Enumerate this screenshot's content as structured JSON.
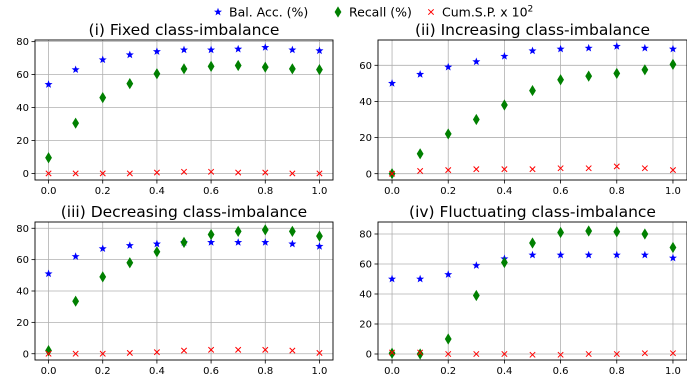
{
  "legend": {
    "entries": [
      {
        "label": "Bal. Acc. (%)",
        "marker": "star",
        "color": "#0000ff"
      },
      {
        "label": "Recall (%)",
        "marker": "diamond",
        "color": "#008000"
      },
      {
        "label": "Cum.S.P. x 10",
        "sup": "2",
        "marker": "x",
        "color": "#ff0000"
      }
    ],
    "placement": "top-center"
  },
  "chart_data": [
    {
      "type": "scatter",
      "title": "(i) Fixed class-imbalance",
      "x": [
        0.0,
        0.1,
        0.2,
        0.3,
        0.4,
        0.5,
        0.6,
        0.7,
        0.8,
        0.9,
        1.0
      ],
      "xticks": [
        "0.0",
        "0.2",
        "0.4",
        "0.6",
        "0.8",
        "1.0"
      ],
      "xlim": [
        -0.05,
        1.05
      ],
      "ylim": [
        -4,
        81
      ],
      "yticks": [
        0,
        20,
        40,
        60,
        80
      ],
      "grid": true,
      "series": [
        {
          "name": "Bal. Acc. (%)",
          "values": [
            54,
            63,
            69,
            72,
            74,
            75,
            75,
            75.5,
            76.5,
            75,
            74.5
          ]
        },
        {
          "name": "Recall (%)",
          "values": [
            9.5,
            30.5,
            46,
            54.5,
            60.5,
            63.5,
            65,
            65.5,
            64.5,
            63.5,
            63
          ]
        },
        {
          "name": "Cum.S.P. x 10^2",
          "values": [
            0,
            0,
            0,
            0,
            0.5,
            1,
            1,
            0.5,
            0.5,
            0,
            0
          ]
        }
      ]
    },
    {
      "type": "scatter",
      "title": "(ii) Increasing class-imbalance",
      "x": [
        0.0,
        0.1,
        0.2,
        0.3,
        0.4,
        0.5,
        0.6,
        0.7,
        0.8,
        0.9,
        1.0
      ],
      "xticks": [
        "0.0",
        "0.2",
        "0.4",
        "0.6",
        "0.8",
        "1.0"
      ],
      "xlim": [
        -0.05,
        1.05
      ],
      "ylim": [
        -3.5,
        74
      ],
      "yticks": [
        0,
        20,
        40,
        60
      ],
      "grid": true,
      "series": [
        {
          "name": "Bal. Acc. (%)",
          "values": [
            50,
            55,
            59,
            62,
            65,
            68,
            69,
            69.5,
            70.5,
            69.5,
            69
          ]
        },
        {
          "name": "Recall (%)",
          "values": [
            0,
            11,
            22,
            30,
            38,
            46,
            52,
            54,
            55.5,
            57.5,
            60.5
          ]
        },
        {
          "name": "Cum.S.P. x 10^2",
          "values": [
            0,
            1.5,
            2,
            2.5,
            2.5,
            2.5,
            3,
            3,
            4,
            3,
            2
          ]
        }
      ]
    },
    {
      "type": "scatter",
      "title": "(iii) Decreasing class-imbalance",
      "x": [
        0.0,
        0.1,
        0.2,
        0.3,
        0.4,
        0.5,
        0.6,
        0.7,
        0.8,
        0.9,
        1.0
      ],
      "xticks": [
        "0.0",
        "0.2",
        "0.4",
        "0.6",
        "0.8",
        "1.0"
      ],
      "xlim": [
        -0.05,
        1.05
      ],
      "ylim": [
        -4,
        84
      ],
      "yticks": [
        0,
        20,
        40,
        60,
        80
      ],
      "grid": true,
      "series": [
        {
          "name": "Bal. Acc. (%)",
          "values": [
            51,
            62,
            67,
            69,
            70,
            71,
            71,
            71,
            71,
            70,
            68.5
          ]
        },
        {
          "name": "Recall (%)",
          "values": [
            2,
            33.5,
            49,
            58,
            65,
            71,
            76,
            78,
            79,
            78,
            75
          ]
        },
        {
          "name": "Cum.S.P. x 10^2",
          "values": [
            0,
            0,
            0,
            0.5,
            1,
            2,
            2.5,
            2.5,
            2.5,
            2,
            0.5
          ]
        }
      ]
    },
    {
      "type": "scatter",
      "title": "(iv) Fluctuating class-imbalance",
      "x": [
        0.0,
        0.1,
        0.2,
        0.3,
        0.4,
        0.5,
        0.6,
        0.7,
        0.8,
        0.9,
        1.0
      ],
      "xticks": [
        "0.0",
        "0.2",
        "0.4",
        "0.6",
        "0.8",
        "1.0"
      ],
      "xlim": [
        -0.05,
        1.05
      ],
      "ylim": [
        -4,
        88
      ],
      "yticks": [
        0,
        20,
        40,
        60,
        80
      ],
      "grid": true,
      "series": [
        {
          "name": "Bal. Acc. (%)",
          "values": [
            50,
            50,
            53,
            59,
            63.5,
            66,
            66,
            66,
            66,
            66,
            64
          ]
        },
        {
          "name": "Recall (%)",
          "values": [
            0.5,
            0,
            10,
            39,
            61,
            74,
            81,
            82,
            81.5,
            80,
            71
          ]
        },
        {
          "name": "Cum.S.P. x 10^2",
          "values": [
            1,
            1,
            0,
            0,
            0,
            -0.5,
            -0.5,
            0,
            0,
            0.5,
            0.5
          ]
        }
      ]
    }
  ]
}
